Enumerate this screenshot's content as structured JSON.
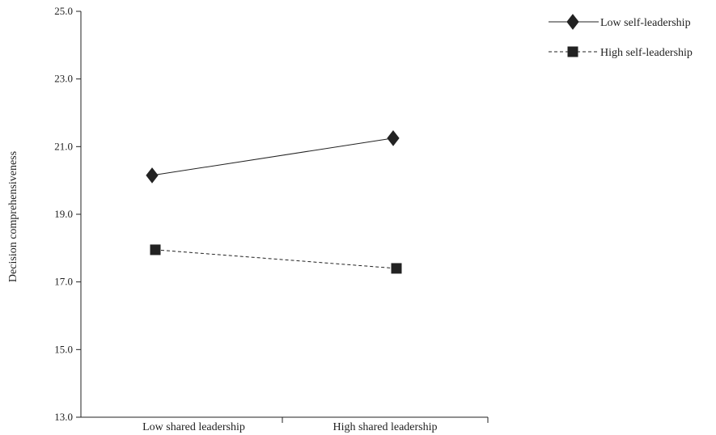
{
  "chart_data": {
    "type": "line",
    "title": "",
    "xlabel": "",
    "ylabel": "Decision comprehensiveness",
    "categories": [
      "Low shared leadership",
      "High shared leadership"
    ],
    "ylim": [
      13.0,
      25.0
    ],
    "yticks": [
      "13.0",
      "15.0",
      "17.0",
      "19.0",
      "21.0",
      "23.0",
      "25.0"
    ],
    "grid": false,
    "legend": "top-right",
    "series": [
      {
        "name": "Low self-leadership",
        "values": [
          20.15,
          21.25
        ],
        "marker": "diamond",
        "line": "solid",
        "color": "#222222"
      },
      {
        "name": "High self-leadership",
        "values": [
          17.95,
          17.4
        ],
        "marker": "square",
        "line": "dashed",
        "color": "#222222"
      }
    ]
  }
}
